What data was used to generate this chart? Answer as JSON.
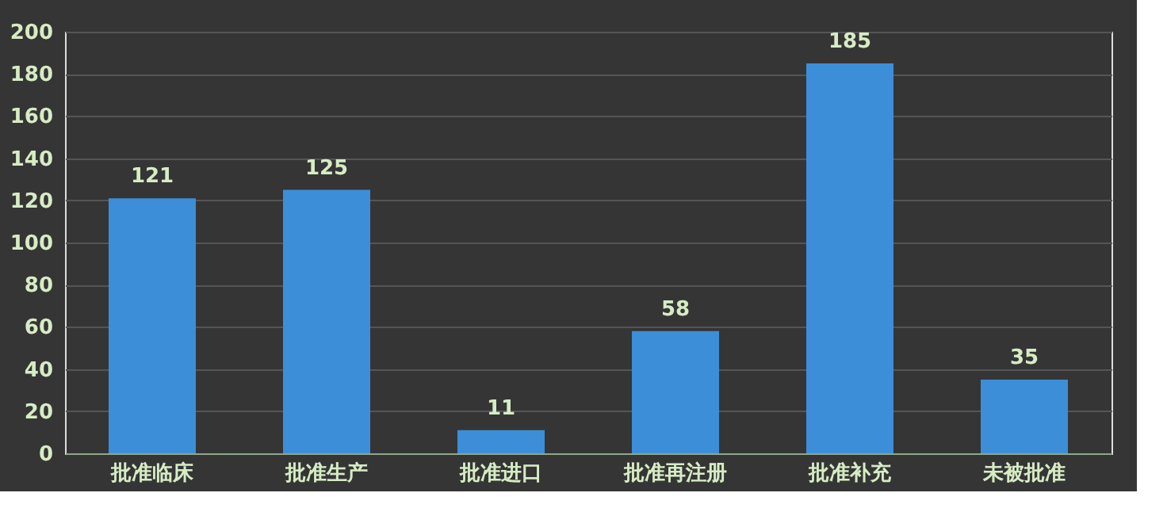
{
  "chart_data": {
    "type": "bar",
    "categories": [
      "批准临床",
      "批准生产",
      "批准进口",
      "批准再注册",
      "批准补充",
      "未被批准"
    ],
    "values": [
      121,
      125,
      11,
      58,
      185,
      35
    ],
    "color": "#3d8ed8",
    "ylim": [
      0,
      200
    ],
    "yticks": [
      0,
      20,
      40,
      60,
      80,
      100,
      120,
      140,
      160,
      180,
      200
    ],
    "grid": "y",
    "data_labels": true
  }
}
